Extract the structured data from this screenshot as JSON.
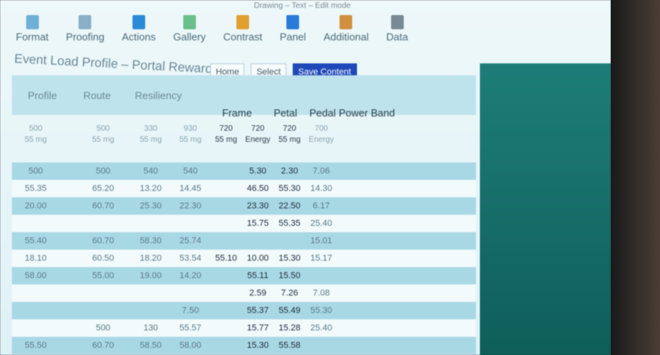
{
  "app_info": "Drawing – Text – Edit mode",
  "ribbon": [
    {
      "label": "Format",
      "icon": "format-icon",
      "color": "#6fb0d8"
    },
    {
      "label": "Proofing",
      "icon": "proof-icon",
      "color": "#8ab0c8"
    },
    {
      "label": "Actions",
      "icon": "actions-icon",
      "color": "#2a8ad8"
    },
    {
      "label": "Gallery",
      "icon": "gallery-icon",
      "color": "#6abf8a"
    },
    {
      "label": "Contrast",
      "icon": "contrast-icon",
      "color": "#e0a030"
    },
    {
      "label": "Panel",
      "icon": "panel-icon",
      "color": "#2a7ad8"
    },
    {
      "label": "Additional",
      "icon": "additional-icon",
      "color": "#d09040"
    },
    {
      "label": "Data",
      "icon": "data-icon",
      "color": "#7a8a94"
    }
  ],
  "title": "Event Load Profile – Portal Reward",
  "buttons": [
    "Home",
    "Select",
    "Save Content"
  ],
  "accent": "#1f48b8",
  "headers": [
    {
      "label": "Profile"
    },
    {
      "label": "Route"
    },
    {
      "label": "Resiliency"
    },
    {
      "label": "Frame"
    },
    {
      "label": "Petal"
    },
    {
      "label": "Pedal"
    },
    {
      "label": "Power Band"
    }
  ],
  "subheaders": [
    [
      "500",
      "55 mg"
    ],
    [
      "500",
      "55 mg"
    ],
    [
      "330",
      "55 mg"
    ],
    [
      "930",
      "55 mg"
    ],
    [
      "720",
      "55 mg"
    ],
    [
      "720",
      "Energy"
    ],
    [
      "720",
      "55 mg"
    ],
    [
      "700",
      "Energy"
    ]
  ],
  "rows": [
    [
      "500",
      "500",
      "540",
      "540",
      "",
      "5.30",
      "2.30",
      "7.06"
    ],
    [
      "55.35",
      "65.20",
      "13.20",
      "14.45",
      "",
      "46.50",
      "55.30",
      "14.30"
    ],
    [
      "20.00",
      "60.70",
      "25.30",
      "22.30",
      "",
      "23.30",
      "22.50",
      "6.17"
    ],
    [
      "",
      "",
      "",
      "",
      "",
      "15.75",
      "55.35",
      "25.40"
    ],
    [
      "55.40",
      "60.70",
      "58.30",
      "25.74",
      "",
      "",
      "",
      "15.01"
    ],
    [
      "18.10",
      "60.50",
      "18.20",
      "53.54",
      "55.10",
      "10.00",
      "15.30",
      "15.17"
    ],
    [
      "58.00",
      "55.00",
      "19.00",
      "14.20",
      "",
      "55.11",
      "15.50",
      ""
    ],
    [
      "",
      "",
      "",
      "",
      "",
      "2.59",
      "7.26",
      "7.08"
    ],
    [
      "",
      "",
      "",
      "7.50",
      "",
      "55.37",
      "55.49",
      "55.30"
    ],
    [
      "",
      "500",
      "130",
      "55.57",
      "",
      "15.77",
      "15.28",
      "25.40"
    ],
    [
      "55.50",
      "60.70",
      "58.50",
      "58.00",
      "",
      "15.30",
      "55.58",
      ""
    ]
  ]
}
